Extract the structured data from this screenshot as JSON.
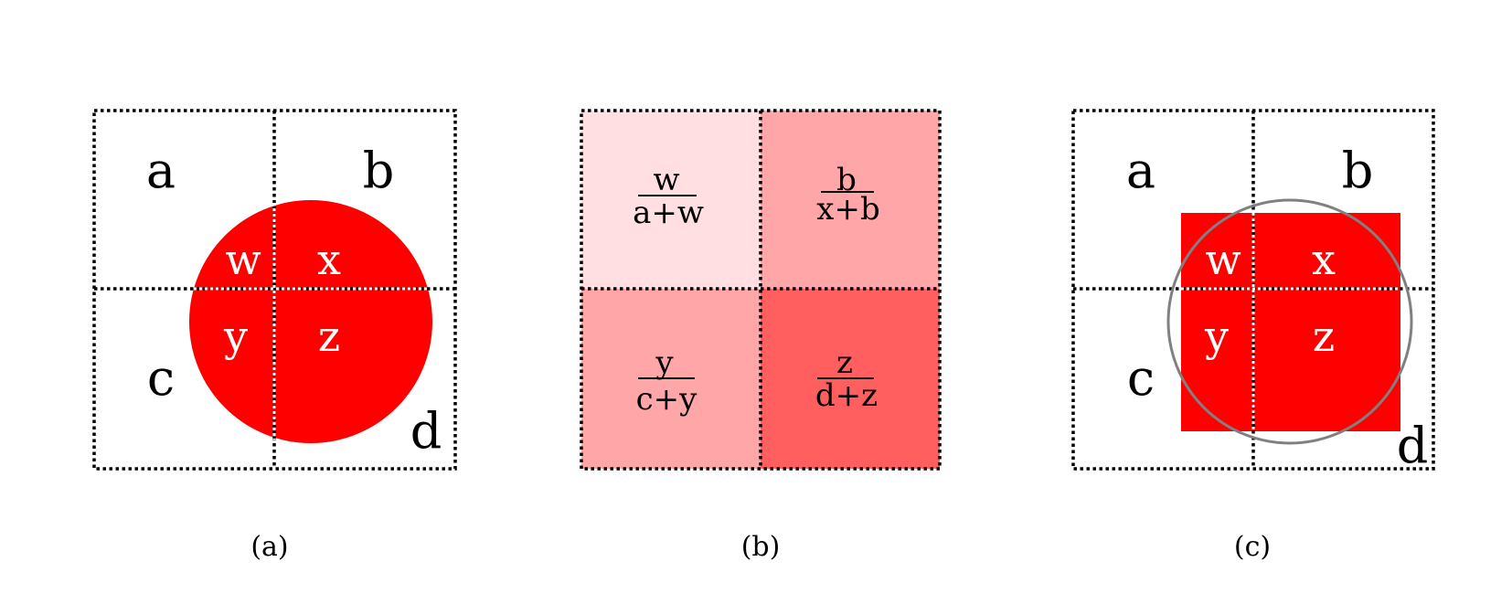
{
  "colors": {
    "red": "#ff0000",
    "cell_light": "#ffdfe2",
    "cell_medium": "#ffa6a8",
    "cell_dark": "#ff5f5f",
    "circle_outline": "#808080"
  },
  "panels": {
    "a": {
      "caption": "(a)",
      "cells": {
        "a": "a",
        "b": "b",
        "c": "c",
        "d": "d"
      },
      "inner": {
        "w": "w",
        "x": "x",
        "y": "y",
        "z": "z"
      }
    },
    "b": {
      "caption": "(b)",
      "cells": [
        {
          "numerator": "w",
          "denominator": "a+w",
          "shade": "light"
        },
        {
          "numerator": "b",
          "denominator": "x+b",
          "shade": "medium"
        },
        {
          "numerator": "y",
          "denominator": "c+y",
          "shade": "medium"
        },
        {
          "numerator": "z",
          "denominator": "d+z",
          "shade": "dark"
        }
      ]
    },
    "c": {
      "caption": "(c)",
      "cells": {
        "a": "a",
        "b": "b",
        "c": "c",
        "d": "d"
      },
      "inner": {
        "w": "w",
        "x": "x",
        "y": "y",
        "z": "z"
      }
    }
  }
}
